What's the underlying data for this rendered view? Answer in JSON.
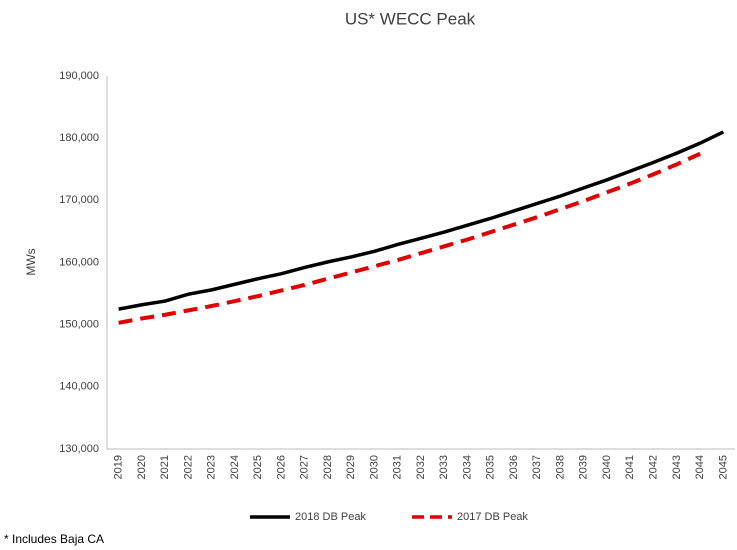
{
  "chart_data": {
    "type": "line",
    "title": "US* WECC Peak",
    "y_label": "MWs",
    "note": "* Includes Baja CA",
    "categories": [
      "2019",
      "2020",
      "2021",
      "2022",
      "2023",
      "2024",
      "2025",
      "2026",
      "2027",
      "2028",
      "2029",
      "2030",
      "2031",
      "2032",
      "2033",
      "2034",
      "2035",
      "2036",
      "2037",
      "2038",
      "2039",
      "2040",
      "2041",
      "2042",
      "2043",
      "2044",
      "2045"
    ],
    "series": [
      {
        "name": "2018 DB Peak",
        "color": "#000000",
        "dash": false,
        "values": [
          152500,
          153200,
          153800,
          154900,
          155600,
          156500,
          157400,
          158200,
          159200,
          160100,
          160900,
          161800,
          162900,
          163900,
          164900,
          166000,
          167100,
          168300,
          169500,
          170700,
          172000,
          173300,
          174700,
          176100,
          177600,
          179200,
          181000
        ]
      },
      {
        "name": "2017 DB Peak",
        "color": "#e00000",
        "dash": true,
        "values": [
          150300,
          151000,
          151600,
          152300,
          153000,
          153800,
          154600,
          155500,
          156400,
          157400,
          158400,
          159400,
          160400,
          161500,
          162600,
          163700,
          164900,
          166100,
          167300,
          168600,
          169900,
          171300,
          172700,
          174200,
          175800,
          177500,
          null
        ]
      }
    ],
    "ylim": [
      130000,
      190000
    ],
    "yticks": [
      {
        "value": 130000,
        "label": "130,000"
      },
      {
        "value": 140000,
        "label": "140,000"
      },
      {
        "value": 150000,
        "label": "150,000"
      },
      {
        "value": 160000,
        "label": "160,000"
      },
      {
        "value": 170000,
        "label": "170,000"
      },
      {
        "value": 180000,
        "label": "180,000"
      },
      {
        "value": 190000,
        "label": "190,000"
      }
    ],
    "grid": false,
    "legend": "bottom"
  }
}
